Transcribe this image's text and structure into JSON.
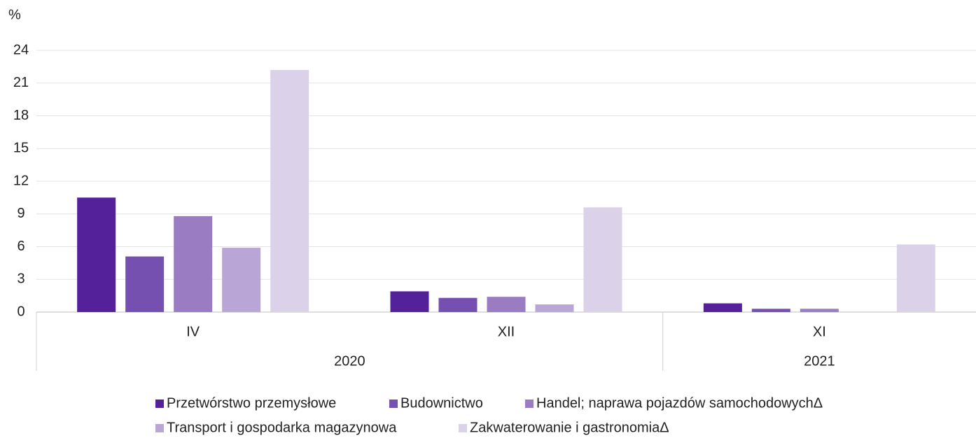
{
  "chart_data": {
    "type": "bar",
    "y_unit": "%",
    "categories": [
      "IV",
      "XII",
      "XI"
    ],
    "category_groups": [
      {
        "label": "2020",
        "count": 2
      },
      {
        "label": "2021",
        "count": 1
      }
    ],
    "series": [
      {
        "name": "Przetwórstwo przemysłowe",
        "color": "#54219a",
        "values": [
          10.5,
          1.9,
          0.8
        ]
      },
      {
        "name": "Budownictwo",
        "color": "#7650b0",
        "values": [
          5.1,
          1.3,
          0.3
        ]
      },
      {
        "name": "Handel; naprawa pojazdów samochodowychΔ",
        "color": "#9a7cc2",
        "values": [
          8.8,
          1.4,
          0.3
        ]
      },
      {
        "name": "Transport i gospodarka magazynowa",
        "color": "#b9a5d6",
        "values": [
          5.9,
          0.7,
          0
        ]
      },
      {
        "name": "Zakwaterowanie i gastronomiaΔ",
        "color": "#dbd2ea",
        "values": [
          22.2,
          9.6,
          6.2
        ]
      }
    ],
    "ylim": [
      0,
      24
    ],
    "yticks": [
      0,
      3,
      6,
      9,
      12,
      15,
      18,
      21,
      24
    ],
    "grid": true,
    "legend": "bottom"
  }
}
